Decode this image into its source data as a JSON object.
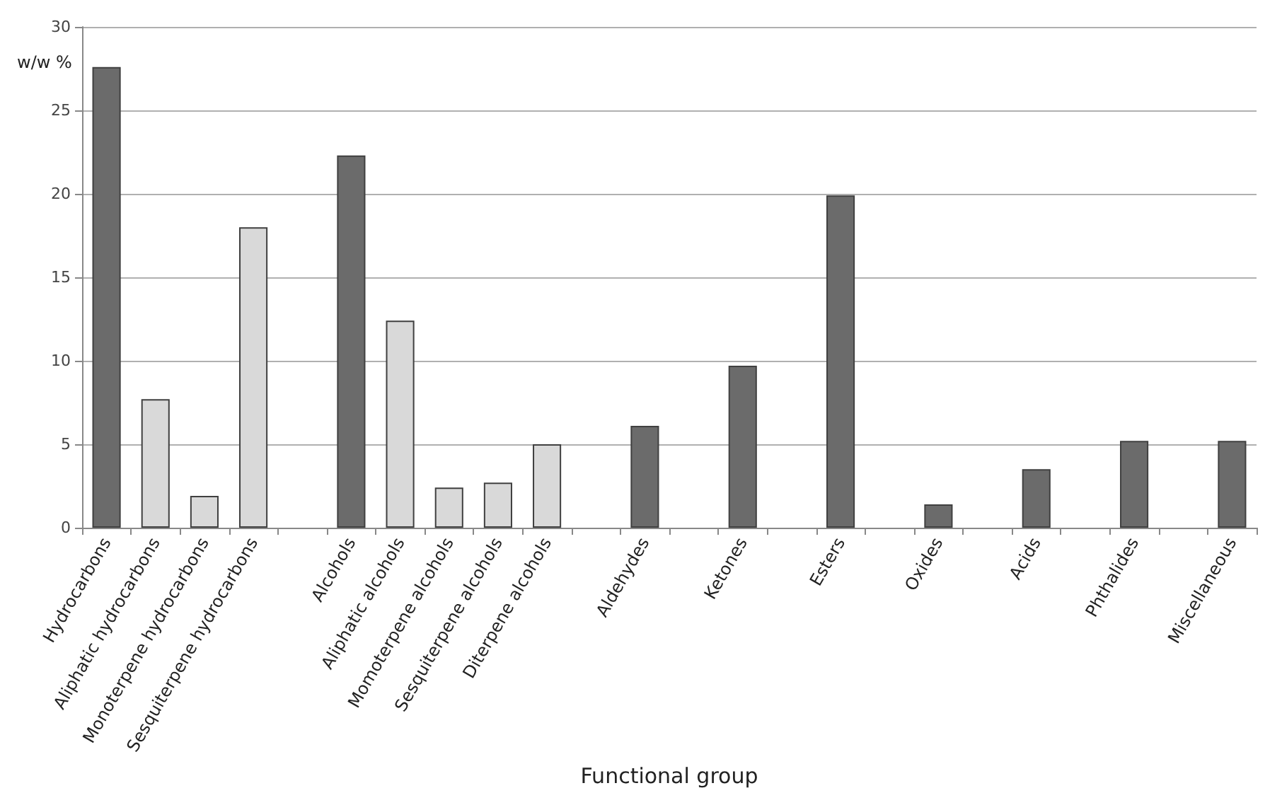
{
  "chart_data": {
    "type": "bar",
    "xlabel": "Functional group",
    "ylabel": "w/w %",
    "categories": [
      "Hydrocarbons",
      "Aliphatic hydrocarbons",
      "Monoterpene hydrocarbons",
      "Sesquiterpene hydrocarbons",
      null,
      "Alcohols",
      "Aliphatic alcohols",
      "Momoterpene alcohols",
      "Sesquiterpene alcohols",
      "Diterpene alcohols",
      null,
      "Aldehydes",
      null,
      "Ketones",
      null,
      "Esters",
      null,
      "Oxides",
      null,
      "Acids",
      null,
      "Phthalides",
      null,
      "Miscellaneous"
    ],
    "values": [
      27.6,
      7.7,
      1.9,
      18.0,
      null,
      22.3,
      12.4,
      2.4,
      2.7,
      5.0,
      null,
      6.1,
      null,
      9.7,
      null,
      19.9,
      null,
      1.4,
      null,
      3.5,
      null,
      5.2,
      null,
      5.2
    ],
    "colors": [
      "#6b6b6b",
      "#d9d9d9",
      "#d9d9d9",
      "#d9d9d9",
      null,
      "#6b6b6b",
      "#d9d9d9",
      "#d9d9d9",
      "#d9d9d9",
      "#d9d9d9",
      null,
      "#6b6b6b",
      null,
      "#6b6b6b",
      null,
      "#6b6b6b",
      null,
      "#6b6b6b",
      null,
      "#6b6b6b",
      null,
      "#6b6b6b",
      null,
      "#6b6b6b"
    ],
    "ylim": [
      0,
      30
    ],
    "yticks": [
      0,
      5,
      10,
      15,
      20,
      25,
      30
    ],
    "grid": "y"
  }
}
